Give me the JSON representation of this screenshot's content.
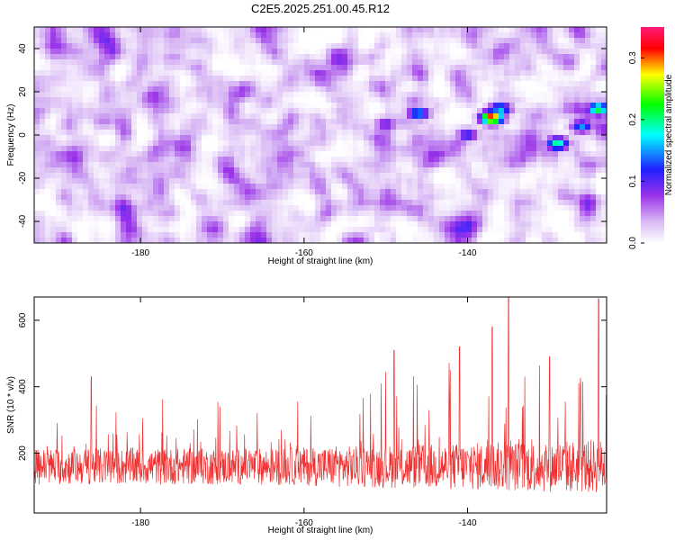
{
  "title": "C2E5.2025.251.00.45.R12",
  "chart_data": [
    {
      "type": "heatmap",
      "xlabel": "Height of straight line (km)",
      "ylabel": "Frequency (Hz)",
      "xlim": [
        -193,
        -123
      ],
      "ylim": [
        -50,
        50
      ],
      "xticks": [
        -180,
        -160,
        -140
      ],
      "yticks": [
        -40,
        -20,
        0,
        20,
        40
      ],
      "colorbar": {
        "label": "Normalized spectral amplitude",
        "range": [
          0.0,
          0.35
        ],
        "ticks": [
          0.0,
          0.1,
          0.2,
          0.3
        ],
        "colors": [
          "#ffffff",
          "#9a32e8",
          "#2020ff",
          "#00ffff",
          "#00ff00",
          "#ffff00",
          "#ff0000",
          "#ff1a7a"
        ]
      },
      "hotspots": [
        {
          "x": -137,
          "y": 8,
          "value": 0.33
        },
        {
          "x": -124,
          "y": 12,
          "value": 0.22
        },
        {
          "x": -129,
          "y": -4,
          "value": 0.2
        },
        {
          "x": -146,
          "y": 10,
          "value": 0.16
        },
        {
          "x": -136,
          "y": 12,
          "value": 0.17
        },
        {
          "x": -126,
          "y": 4,
          "value": 0.15
        },
        {
          "x": -140,
          "y": 0,
          "value": 0.12
        },
        {
          "x": -150,
          "y": 5,
          "value": 0.1
        }
      ]
    },
    {
      "type": "line",
      "xlabel": "Height of straight line (km)",
      "ylabel": "SNR (10 * v/v)",
      "xlim": [
        -193,
        -123
      ],
      "ylim": [
        20,
        670
      ],
      "xticks": [
        -180,
        -160,
        -140
      ],
      "yticks": [
        200,
        400,
        600
      ],
      "series": [
        {
          "color": "#f03030",
          "baseline": 160,
          "noise": 55,
          "peaks": [
            {
              "x": -135,
              "y": 670
            },
            {
              "x": -124,
              "y": 665
            },
            {
              "x": -137,
              "y": 580
            },
            {
              "x": -141,
              "y": 520
            },
            {
              "x": -149,
              "y": 510
            },
            {
              "x": -130,
              "y": 490
            },
            {
              "x": -186,
              "y": 430
            }
          ]
        }
      ]
    }
  ]
}
